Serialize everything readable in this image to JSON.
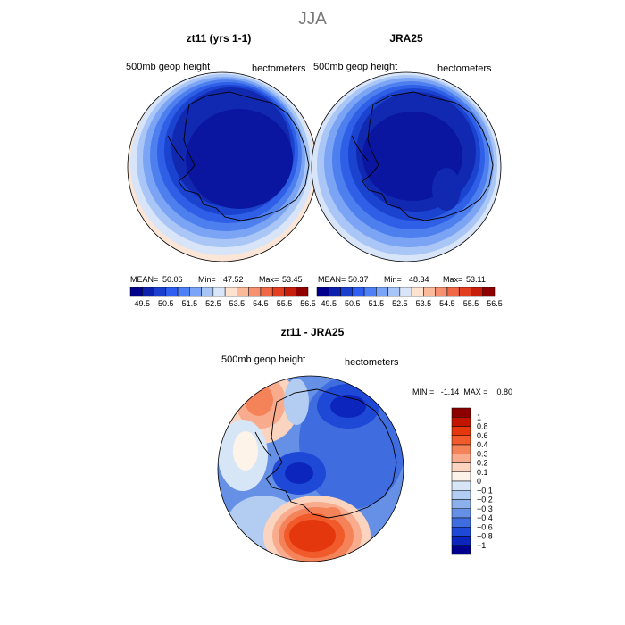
{
  "page_title": "JJA",
  "panels": {
    "left": {
      "title": "zt11 (yrs 1-1)",
      "variable_label": "500mb  geop  height",
      "units_label": "hectometers",
      "stats": {
        "mean_label": "MEAN=",
        "mean": "50.06",
        "min_label": "Min=",
        "min": "47.52",
        "max_label": "Max=",
        "max": "53.45"
      }
    },
    "right": {
      "title": "JRA25",
      "variable_label": "500mb  geop  height",
      "units_label": "hectometers",
      "stats": {
        "mean_label": "MEAN=",
        "mean": "50.37",
        "min_label": "Min=",
        "min": "48.34",
        "max_label": "Max=",
        "max": "53.11"
      }
    },
    "diff": {
      "title": "zt11 - JRA25",
      "variable_label": "500mb  geop  height",
      "units_label": "hectometers",
      "minmax_text": "MIN =   -1.14  MAX =    0.80"
    }
  },
  "colorbars": {
    "height": {
      "tick_labels": [
        "49.5",
        "50.5",
        "51.5",
        "52.5",
        "53.5",
        "54.5",
        "55.5",
        "56.5"
      ],
      "colors": [
        "#00008c",
        "#0d1fad",
        "#1a3fcf",
        "#2e5ff0",
        "#4d80f7",
        "#7aa4f7",
        "#a6c4f5",
        "#d9e6fa",
        "#fde3cf",
        "#f9b99a",
        "#f59070",
        "#f06846",
        "#e23e20",
        "#c71e0b",
        "#8f0000"
      ]
    },
    "diff": {
      "labels": [
        "1",
        "0.8",
        "0.6",
        "0.4",
        "0.3",
        "0.2",
        "0.1",
        "0",
        "−0.1",
        "−0.2",
        "−0.3",
        "−0.4",
        "−0.6",
        "−0.8",
        "−1"
      ],
      "colors": [
        "#8c0000",
        "#c21500",
        "#e5370e",
        "#f15a2a",
        "#f5835a",
        "#f8ab8d",
        "#fbd4c0",
        "#fdf3e8",
        "#d6e6f7",
        "#b3cdf2",
        "#8cb0ec",
        "#6690e6",
        "#3f6ddf",
        "#1e48d6",
        "#0c26bd",
        "#00008c"
      ]
    }
  },
  "chart_data": [
    {
      "type": "heatmap",
      "title": "zt11 (yrs 1-1)",
      "projection": "south polar stereographic",
      "variable": "500mb geop height",
      "units": "hectometers",
      "summary": {
        "mean": 50.06,
        "min": 47.52,
        "max": 53.45
      },
      "colorbar_ticks": [
        49.5,
        50.5,
        51.5,
        52.5,
        53.5,
        54.5,
        55.5,
        56.5
      ]
    },
    {
      "type": "heatmap",
      "title": "JRA25",
      "projection": "south polar stereographic",
      "variable": "500mb geop height",
      "units": "hectometers",
      "summary": {
        "mean": 50.37,
        "min": 48.34,
        "max": 53.11
      },
      "colorbar_ticks": [
        49.5,
        50.5,
        51.5,
        52.5,
        53.5,
        54.5,
        55.5,
        56.5
      ]
    },
    {
      "type": "heatmap",
      "title": "zt11 - JRA25",
      "projection": "south polar stereographic",
      "variable": "500mb geop height",
      "units": "hectometers",
      "summary": {
        "min": -1.14,
        "max": 0.8
      },
      "colorbar_levels": [
        1,
        0.8,
        0.6,
        0.4,
        0.3,
        0.2,
        0.1,
        0,
        -0.1,
        -0.2,
        -0.3,
        -0.4,
        -0.6,
        -0.8,
        -1
      ]
    }
  ]
}
